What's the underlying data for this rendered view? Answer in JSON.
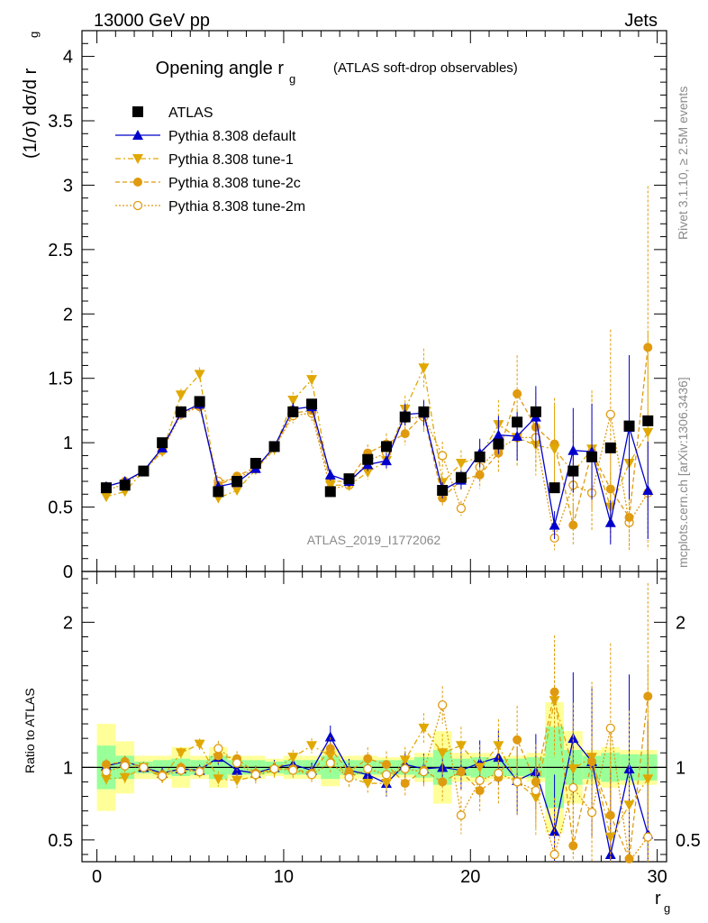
{
  "header": {
    "left": "13000 GeV pp",
    "right": "Jets"
  },
  "side": {
    "rivet": "Rivet 3.1.10, ≥ 2.5M events",
    "mcplots": "mcplots.cern.ch [arXiv:1306.3436]"
  },
  "chart_data": {
    "type": "scatter",
    "title_main": "Opening angle r",
    "title_sub": "g",
    "title_paren": "(ATLAS soft-drop observables)",
    "analysis_label": "ATLAS_2019_I1772062",
    "xlabel": "r",
    "xlabel_sub": "g",
    "ylabel": "(1/σ) dσ/d r",
    "ylabel_sub": "g",
    "ratio_ylabel": "Ratio to ATLAS",
    "xlim": [
      -0.8,
      30.5
    ],
    "ylim": [
      0,
      4.2
    ],
    "ratio_ylim": [
      0.35,
      2.35
    ],
    "x_ticks": [
      "0",
      "10",
      "20",
      "30"
    ],
    "y_ticks": [
      "0",
      "0.5",
      "1",
      "1.5",
      "2",
      "2.5",
      "3",
      "3.5",
      "4"
    ],
    "ratio_ticks": [
      "0.5",
      "1",
      "2"
    ],
    "legend_position": "top-left",
    "x": [
      0.5,
      1.5,
      2.5,
      3.5,
      4.5,
      5.5,
      6.5,
      7.5,
      8.5,
      9.5,
      10.5,
      11.5,
      12.5,
      13.5,
      14.5,
      15.5,
      16.5,
      17.5,
      18.5,
      19.5,
      20.5,
      21.5,
      22.5,
      23.5,
      24.5,
      25.5,
      26.5,
      27.5,
      28.5,
      29.5
    ],
    "series": [
      {
        "name": "ATLAS",
        "color": "#000000",
        "values": [
          0.65,
          0.67,
          0.78,
          1.0,
          1.24,
          1.32,
          0.62,
          0.7,
          0.84,
          0.97,
          1.24,
          1.3,
          0.62,
          0.72,
          0.87,
          0.97,
          1.2,
          1.24,
          0.63,
          0.73,
          0.89,
          0.99,
          1.16,
          1.24,
          0.65,
          0.78,
          0.89,
          0.96,
          1.13,
          1.17
        ]
      },
      {
        "name": "Pythia 8.308 default",
        "color": "#0000cc",
        "values": [
          0.66,
          0.7,
          0.78,
          0.96,
          1.23,
          1.3,
          0.66,
          0.69,
          0.8,
          0.97,
          1.26,
          1.28,
          0.75,
          0.7,
          0.83,
          0.86,
          1.22,
          1.23,
          0.63,
          0.71,
          0.92,
          1.06,
          1.05,
          1.2,
          0.36,
          0.94,
          0.93,
          0.38,
          1.12,
          0.63
        ]
      },
      {
        "name": "Pythia 8.308 tune-1",
        "color": "#e0a800",
        "values": [
          0.58,
          0.62,
          0.78,
          0.93,
          1.37,
          1.53,
          0.57,
          0.63,
          0.79,
          0.95,
          1.33,
          1.49,
          0.67,
          0.67,
          0.77,
          0.86,
          1.26,
          1.58,
          0.69,
          0.84,
          0.89,
          1.14,
          1.04,
          0.98,
          0.95,
          0.77,
          0.95,
          0.5,
          0.84,
          1.08
        ]
      },
      {
        "name": "Pythia 8.308 tune-2c",
        "color": "#e09a10",
        "values": [
          0.66,
          0.7,
          0.78,
          0.95,
          1.24,
          1.28,
          0.67,
          0.74,
          0.81,
          0.96,
          1.23,
          1.25,
          0.7,
          0.7,
          0.92,
          0.99,
          1.07,
          1.22,
          0.57,
          0.71,
          0.75,
          0.92,
          1.38,
          1.12,
          0.99,
          0.36,
          0.93,
          0.64,
          0.42,
          1.74
        ]
      },
      {
        "name": "Pythia 8.308 tune-2m",
        "color": "#e09a10",
        "values": [
          0.63,
          0.68,
          0.78,
          0.94,
          1.22,
          1.28,
          0.7,
          0.72,
          0.8,
          0.96,
          1.21,
          1.23,
          0.64,
          0.67,
          0.86,
          0.92,
          1.19,
          1.2,
          0.9,
          0.49,
          0.81,
          0.95,
          1.04,
          1.04,
          0.26,
          0.67,
          0.61,
          1.22,
          0.38,
          0.61
        ]
      }
    ],
    "ratio_series": [
      {
        "name": "Pythia 8.308 default",
        "values": [
          1.01,
          1.04,
          1.0,
          0.96,
          0.99,
          0.98,
          1.07,
          0.98,
          0.96,
          1.0,
          1.02,
          0.98,
          1.21,
          0.98,
          0.95,
          0.89,
          1.02,
          0.99,
          1.0,
          0.98,
          1.03,
          1.07,
          0.91,
          0.97,
          0.56,
          1.2,
          1.04,
          0.4,
          0.99,
          0.54
        ]
      },
      {
        "name": "Pythia 8.308 tune-1",
        "values": [
          0.92,
          0.93,
          1.0,
          0.93,
          1.1,
          1.16,
          0.92,
          0.91,
          0.94,
          0.98,
          1.07,
          1.15,
          1.08,
          0.93,
          0.89,
          0.89,
          1.05,
          1.27,
          1.1,
          1.15,
          1.0,
          1.15,
          0.9,
          0.79,
          1.46,
          0.99,
          1.07,
          0.52,
          0.74,
          0.92
        ]
      },
      {
        "name": "Pythia 8.308 tune-2c",
        "values": [
          1.02,
          1.04,
          1.0,
          0.95,
          1.0,
          0.97,
          1.08,
          1.06,
          0.96,
          0.99,
          0.99,
          0.96,
          1.13,
          0.97,
          1.06,
          1.02,
          0.89,
          0.98,
          0.9,
          0.97,
          0.84,
          0.93,
          1.19,
          0.9,
          1.52,
          0.46,
          1.04,
          0.67,
          0.37,
          1.49
        ]
      },
      {
        "name": "Pythia 8.308 tune-2m",
        "values": [
          0.97,
          1.01,
          1.0,
          0.94,
          0.98,
          0.97,
          1.13,
          1.03,
          0.95,
          0.99,
          0.98,
          0.95,
          1.03,
          0.93,
          0.99,
          0.95,
          0.99,
          0.97,
          1.43,
          0.67,
          0.91,
          0.96,
          0.9,
          0.84,
          0.4,
          0.86,
          0.69,
          1.27,
          0.34,
          0.52
        ]
      }
    ]
  }
}
